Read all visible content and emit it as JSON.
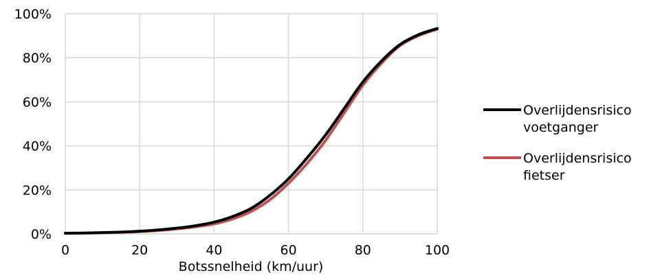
{
  "chart_data": {
    "type": "line",
    "xlabel": "Botssnelheid (km/uur)",
    "ylabel": "",
    "title": "",
    "xlim": [
      0,
      100
    ],
    "ylim": [
      0,
      100
    ],
    "xticks": [
      0,
      20,
      40,
      60,
      80,
      100
    ],
    "yticks": [
      0,
      20,
      40,
      60,
      80,
      100
    ],
    "xtick_labels": [
      "0",
      "20",
      "40",
      "60",
      "80",
      "100"
    ],
    "ytick_labels": [
      "0%",
      "20%",
      "40%",
      "60%",
      "80%",
      "100%"
    ],
    "grid": true,
    "legend_position": "right",
    "x": [
      0,
      5,
      10,
      15,
      20,
      25,
      30,
      35,
      40,
      45,
      50,
      55,
      60,
      65,
      70,
      75,
      80,
      85,
      90,
      95,
      100
    ],
    "series": [
      {
        "name": "Overlijdensrisico voetganger",
        "legend_lines": [
          "Overlijdensrisico",
          "voetganger"
        ],
        "color": "#000000",
        "values": [
          0.3,
          0.4,
          0.6,
          0.8,
          1.2,
          1.8,
          2.6,
          3.7,
          5.3,
          7.9,
          11.6,
          17.5,
          25.0,
          34.5,
          45.0,
          57.0,
          69.0,
          78.5,
          86.0,
          90.5,
          93.3
        ]
      },
      {
        "name": "Overlijdensrisico fietser",
        "legend_lines": [
          "Overlijdensrisico",
          "fietser"
        ],
        "color": "#c0504d",
        "values": [
          0.2,
          0.3,
          0.5,
          0.7,
          1.0,
          1.5,
          2.2,
          3.2,
          4.5,
          6.8,
          10.2,
          15.5,
          23.0,
          32.0,
          42.5,
          55.0,
          67.5,
          77.5,
          85.5,
          90.0,
          93.0
        ]
      }
    ]
  }
}
